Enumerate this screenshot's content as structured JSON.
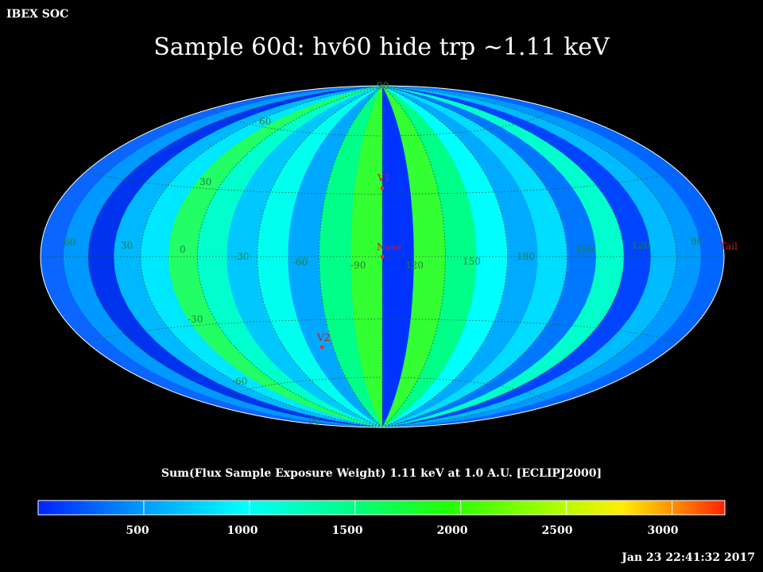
{
  "header": {
    "corner_label": "IBEX SOC",
    "title": "Sample 60d: hv60 hide trp ~1.11 keV"
  },
  "map": {
    "projection": "Hammer-Aitoff (ecliptic J2000)",
    "longitude_labels": [
      "60",
      "30",
      "0",
      "-30",
      "-60",
      "-90",
      "120",
      "150",
      "180",
      "150",
      "120",
      "90"
    ],
    "latitude_labels": [
      "90",
      "60",
      "30",
      "-30",
      "-60",
      "-90"
    ],
    "markers": [
      {
        "name": "V1"
      },
      {
        "name": "Nose"
      },
      {
        "name": "V2"
      },
      {
        "name": "Tail"
      }
    ],
    "marker_color": "#e83030"
  },
  "colorbar": {
    "title": "Sum(Flux Sample Exposure Weight)  1.11 keV at 1.0 A.U. [ECLIPJ2000]",
    "ticks": [
      "500",
      "1000",
      "1500",
      "2000",
      "2500",
      "3000"
    ],
    "range": [
      0,
      3300
    ],
    "colors": [
      "#0033ff",
      "#0099ff",
      "#00ffff",
      "#00ff99",
      "#33ff00",
      "#99ff00",
      "#ffff00",
      "#ff9900",
      "#ff3300"
    ]
  },
  "footer": {
    "timestamp": "Jan 23 22:41:32 2017"
  }
}
